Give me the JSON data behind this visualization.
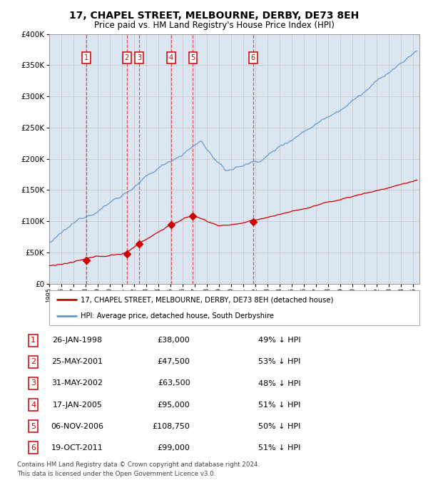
{
  "title": "17, CHAPEL STREET, MELBOURNE, DERBY, DE73 8EH",
  "subtitle": "Price paid vs. HM Land Registry's House Price Index (HPI)",
  "title_fontsize": 10,
  "subtitle_fontsize": 8.5,
  "plot_bg_color": "#dce6f1",
  "transactions": [
    {
      "num": 1,
      "date_num": 1998.07,
      "price": 38000,
      "label": "26-JAN-1998",
      "pct": "49% ↓ HPI"
    },
    {
      "num": 2,
      "date_num": 2001.39,
      "price": 47500,
      "label": "25-MAY-2001",
      "pct": "53% ↓ HPI"
    },
    {
      "num": 3,
      "date_num": 2002.41,
      "price": 63500,
      "label": "31-MAY-2002",
      "pct": "48% ↓ HPI"
    },
    {
      "num": 4,
      "date_num": 2005.04,
      "price": 95000,
      "label": "17-JAN-2005",
      "pct": "51% ↓ HPI"
    },
    {
      "num": 5,
      "date_num": 2006.84,
      "price": 108750,
      "label": "06-NOV-2006",
      "pct": "50% ↓ HPI"
    },
    {
      "num": 6,
      "date_num": 2011.8,
      "price": 99000,
      "label": "19-OCT-2011",
      "pct": "51% ↓ HPI"
    }
  ],
  "legend_line1": "17, CHAPEL STREET, MELBOURNE, DERBY, DE73 8EH (detached house)",
  "legend_line2": "HPI: Average price, detached house, South Derbyshire",
  "footer1": "Contains HM Land Registry data © Crown copyright and database right 2024.",
  "footer2": "This data is licensed under the Open Government Licence v3.0.",
  "ylim": [
    0,
    400000
  ],
  "xlim": [
    1995.0,
    2025.5
  ],
  "red_line_color": "#cc0000",
  "blue_line_color": "#6699cc",
  "marker_color": "#cc0000",
  "dashed_line_color": "#dd3333",
  "box_color": "#cc0000",
  "grid_color": "#bbbbbb",
  "spine_color": "#999999"
}
